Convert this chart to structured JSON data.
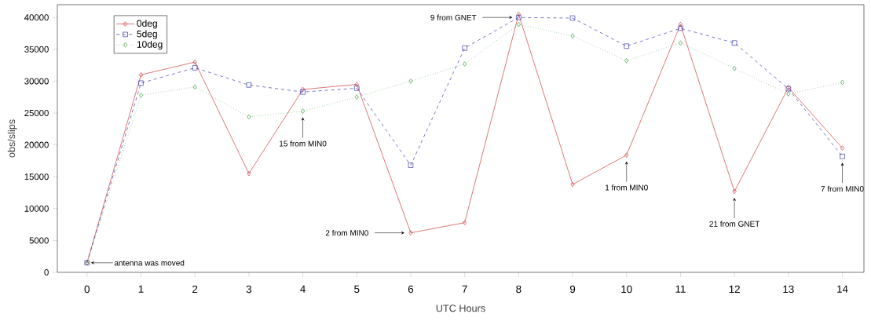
{
  "chart_data": {
    "type": "line",
    "xlabel": "UTC Hours",
    "ylabel": "obs/slips",
    "x": [
      0,
      1,
      2,
      3,
      4,
      5,
      6,
      7,
      8,
      9,
      10,
      11,
      12,
      13,
      14
    ],
    "series": [
      {
        "name": "0deg",
        "color": "#cc3333",
        "marker": "diamond",
        "line_style": "solid",
        "values": [
          1500,
          31000,
          33000,
          15500,
          28700,
          29500,
          6200,
          7800,
          40500,
          13800,
          18400,
          38900,
          12700,
          29000,
          19500
        ]
      },
      {
        "name": "5deg",
        "color": "#3333aa",
        "marker": "square",
        "line_style": "dashed",
        "values": [
          1500,
          29700,
          32100,
          29400,
          28300,
          28900,
          16800,
          35200,
          40000,
          39900,
          35500,
          38300,
          36000,
          28800,
          18200
        ]
      },
      {
        "name": "10deg",
        "color": "#339933",
        "marker": "diamond",
        "line_style": "dotted",
        "values": [
          1500,
          27800,
          29100,
          24400,
          25300,
          27500,
          30000,
          32700,
          38900,
          37100,
          33200,
          36000,
          32000,
          28000,
          29800
        ]
      }
    ],
    "xlim": [
      -0.55,
      14.4
    ],
    "ylim": [
      0,
      42000
    ],
    "xticks": [
      0,
      1,
      2,
      3,
      4,
      5,
      6,
      7,
      8,
      9,
      10,
      11,
      12,
      13,
      14
    ],
    "yticks": [
      0,
      5000,
      10000,
      15000,
      20000,
      25000,
      30000,
      35000,
      40000
    ],
    "grid": false,
    "legend": "top left",
    "annotations": [
      "antenna was moved",
      "15 from MIN0",
      "2 from MIN0",
      "9 from GNET",
      "1 from MIN0",
      "21 from GNET",
      "7 from MIN0"
    ]
  }
}
